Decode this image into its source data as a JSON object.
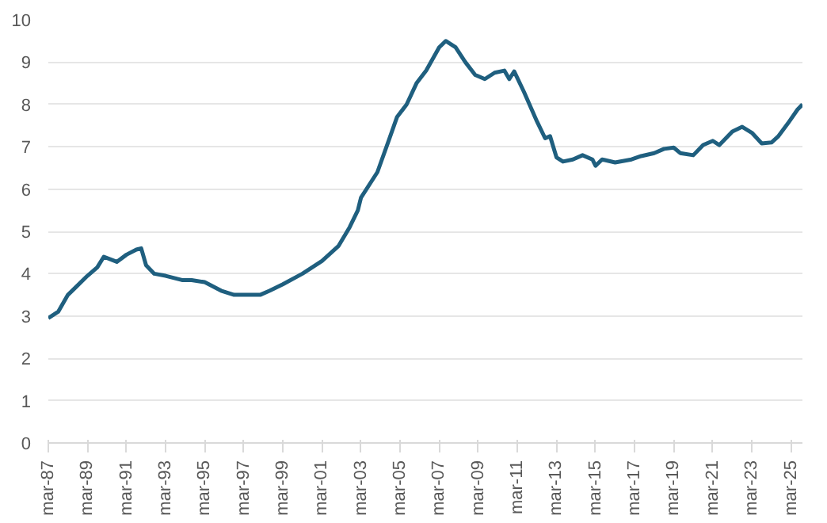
{
  "chart_data": {
    "type": "line",
    "x": [
      "1987-03",
      "1987-09",
      "1988-03",
      "1988-07",
      "1989-03",
      "1989-09",
      "1990-01",
      "1990-09",
      "1991-03",
      "1991-09",
      "1991-12",
      "1992-03",
      "1992-08",
      "1993-03",
      "1994-01",
      "1994-07",
      "1995-03",
      "1996-01",
      "1996-09",
      "1998-01",
      "1998-07",
      "1999-03",
      "2000-03",
      "2001-03",
      "2002-01",
      "2002-08",
      "2003-01",
      "2003-03",
      "2004-01",
      "2004-08",
      "2005-01",
      "2005-07",
      "2006-01",
      "2006-07",
      "2007-03",
      "2007-07",
      "2008-01",
      "2008-07",
      "2009-01",
      "2009-07",
      "2010-01",
      "2010-07",
      "2010-10",
      "2011-01",
      "2011-07",
      "2012-03",
      "2012-08",
      "2012-11",
      "2013-03",
      "2013-07",
      "2014-01",
      "2014-07",
      "2015-01",
      "2015-03",
      "2015-07",
      "2016-03",
      "2017-01",
      "2017-07",
      "2018-03",
      "2018-09",
      "2019-03",
      "2019-07",
      "2020-03",
      "2020-09",
      "2021-03",
      "2021-07",
      "2022-03",
      "2022-09",
      "2023-03",
      "2023-09",
      "2024-03",
      "2024-07",
      "2025-01",
      "2025-07",
      "2025-10"
    ],
    "series": [
      {
        "color": "#1f5f7f",
        "values": [
          2.95,
          3.1,
          3.5,
          3.65,
          3.95,
          4.15,
          4.4,
          4.28,
          4.45,
          4.57,
          4.6,
          4.2,
          4.0,
          3.95,
          3.85,
          3.85,
          3.8,
          3.6,
          3.5,
          3.5,
          3.6,
          3.75,
          4.0,
          4.3,
          4.65,
          5.1,
          5.5,
          5.8,
          6.4,
          7.15,
          7.7,
          8.0,
          8.5,
          8.8,
          9.35,
          9.5,
          9.35,
          9.0,
          8.7,
          8.6,
          8.75,
          8.8,
          8.6,
          8.78,
          8.3,
          7.6,
          7.2,
          7.25,
          6.75,
          6.65,
          6.7,
          6.8,
          6.7,
          6.55,
          6.7,
          6.63,
          6.7,
          6.78,
          6.85,
          6.95,
          6.98,
          6.85,
          6.8,
          7.04,
          7.14,
          7.04,
          7.36,
          7.47,
          7.33,
          7.08,
          7.1,
          7.24,
          7.55,
          7.88,
          8.0
        ]
      }
    ],
    "xlim": [
      "1987-03",
      "2025-10"
    ],
    "xticks": [
      {
        "value": "1987-03",
        "label": "mar-87"
      },
      {
        "value": "1989-03",
        "label": "mar-89"
      },
      {
        "value": "1991-03",
        "label": "mar-91"
      },
      {
        "value": "1993-03",
        "label": "mar-93"
      },
      {
        "value": "1995-03",
        "label": "mar-95"
      },
      {
        "value": "1997-03",
        "label": "mar-97"
      },
      {
        "value": "1999-03",
        "label": "mar-99"
      },
      {
        "value": "2001-03",
        "label": "mar-01"
      },
      {
        "value": "2003-03",
        "label": "mar-03"
      },
      {
        "value": "2005-03",
        "label": "mar-05"
      },
      {
        "value": "2007-03",
        "label": "mar-07"
      },
      {
        "value": "2009-03",
        "label": "mar-09"
      },
      {
        "value": "2011-03",
        "label": "mar-11"
      },
      {
        "value": "2013-03",
        "label": "mar-13"
      },
      {
        "value": "2015-03",
        "label": "mar-15"
      },
      {
        "value": "2017-03",
        "label": "mar-17"
      },
      {
        "value": "2019-03",
        "label": "mar-19"
      },
      {
        "value": "2021-03",
        "label": "mar-21"
      },
      {
        "value": "2023-03",
        "label": "mar-23"
      },
      {
        "value": "2025-03",
        "label": "mar-25"
      }
    ],
    "ylim": [
      0,
      10
    ],
    "yticks": [
      0,
      1,
      2,
      3,
      4,
      5,
      6,
      7,
      8,
      9,
      10
    ],
    "grid": "y",
    "line_style": "solid"
  }
}
